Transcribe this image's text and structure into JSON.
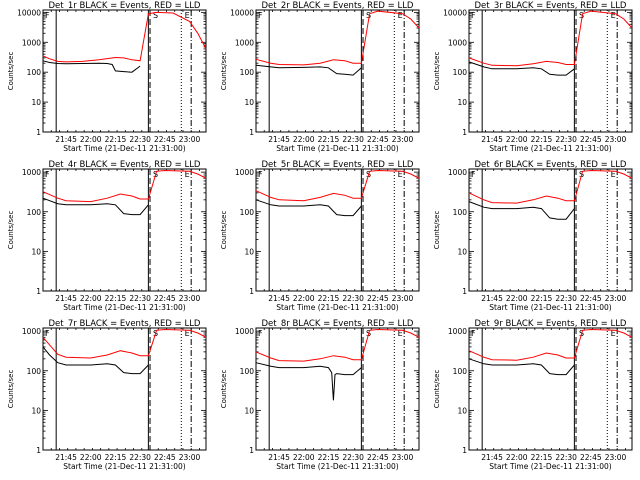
{
  "chart_data": [
    {
      "type": "line",
      "title": "Det_1r BLACK = Events, RED = LLD",
      "xlabel": "Start Time (21-Dec-11 21:31:00)",
      "ylabel": "Counts/sec",
      "y_scale": "log",
      "ylim": [
        1,
        12000
      ],
      "xlim": [
        "21:31",
        "23:10"
      ],
      "x_ticks": [
        "21:45",
        "22:00",
        "22:15",
        "22:30",
        "22:45",
        "23:00"
      ],
      "y_ticks": [
        "1",
        "10",
        "100",
        "1000",
        "10000"
      ],
      "markers": [
        "F",
        "S",
        "E"
      ],
      "series": [
        {
          "color": "#000000",
          "x": [
            "21:31",
            "21:35",
            "21:40",
            "21:45",
            "21:55",
            "22:05",
            "22:10",
            "22:13",
            "22:15",
            "22:20",
            "22:25",
            "22:30"
          ],
          "values": [
            240,
            210,
            195,
            190,
            195,
            200,
            195,
            180,
            110,
            105,
            100,
            160
          ]
        },
        {
          "color": "#ff0000",
          "x": [
            "21:31",
            "21:35",
            "21:40",
            "21:45",
            "21:55",
            "22:05",
            "22:15",
            "22:20",
            "22:25",
            "22:30",
            "22:35",
            "22:40",
            "22:50",
            "23:00",
            "23:05",
            "23:10"
          ],
          "values": [
            350,
            280,
            230,
            220,
            230,
            260,
            310,
            300,
            260,
            240,
            9000,
            10000,
            9500,
            5000,
            2000,
            600
          ]
        }
      ]
    },
    {
      "type": "line",
      "title": "Det_2r BLACK = Events, RED = LLD",
      "xlabel": "Start Time (21-Dec-11 21:31:00)",
      "ylabel": "Counts/sec",
      "y_scale": "log",
      "ylim": [
        1,
        12000
      ],
      "xlim": [
        "21:31",
        "23:10"
      ],
      "x_ticks": [
        "21:45",
        "22:00",
        "22:15",
        "22:30",
        "22:45",
        "23:00"
      ],
      "y_ticks": [
        "1",
        "10",
        "100",
        "1000",
        "10000"
      ],
      "markers": [
        "F",
        "S",
        "E"
      ],
      "series": [
        {
          "color": "#000000",
          "x": [
            "21:31",
            "21:40",
            "21:45",
            "22:00",
            "22:10",
            "22:15",
            "22:20",
            "22:25",
            "22:30",
            "22:35"
          ],
          "values": [
            170,
            150,
            140,
            145,
            150,
            140,
            90,
            85,
            80,
            140
          ]
        },
        {
          "color": "#ff0000",
          "x": [
            "21:31",
            "21:40",
            "21:45",
            "22:00",
            "22:10",
            "22:18",
            "22:25",
            "22:30",
            "22:35",
            "22:40",
            "22:45",
            "23:00",
            "23:05",
            "23:10"
          ],
          "values": [
            270,
            200,
            180,
            175,
            200,
            260,
            240,
            200,
            200,
            9000,
            11000,
            9000,
            6000,
            3000
          ]
        }
      ]
    },
    {
      "type": "line",
      "title": "Det_3r BLACK = Events, RED = LLD",
      "xlabel": "Start Time (21-Dec-11 21:31:00)",
      "ylabel": "Counts/sec",
      "y_scale": "log",
      "ylim": [
        1,
        12000
      ],
      "xlim": [
        "21:31",
        "23:10"
      ],
      "x_ticks": [
        "21:45",
        "22:00",
        "22:15",
        "22:30",
        "22:45",
        "23:00"
      ],
      "y_ticks": [
        "1",
        "10",
        "100",
        "1000",
        "10000"
      ],
      "markers": [
        "F",
        "S",
        "E"
      ],
      "series": [
        {
          "color": "#000000",
          "x": [
            "21:31",
            "21:40",
            "21:45",
            "22:00",
            "22:10",
            "22:15",
            "22:20",
            "22:25",
            "22:30",
            "22:35"
          ],
          "values": [
            220,
            150,
            130,
            130,
            140,
            130,
            85,
            80,
            80,
            130
          ]
        },
        {
          "color": "#ff0000",
          "x": [
            "21:31",
            "21:40",
            "21:45",
            "22:00",
            "22:10",
            "22:18",
            "22:25",
            "22:30",
            "22:35",
            "22:40",
            "22:45",
            "23:00",
            "23:05",
            "23:10"
          ],
          "values": [
            300,
            200,
            170,
            165,
            190,
            230,
            210,
            180,
            180,
            9000,
            11000,
            9000,
            6000,
            3000
          ]
        }
      ]
    },
    {
      "type": "line",
      "title": "Det_4r BLACK = Events, RED = LLD",
      "xlabel": "Start Time (21-Dec-11 21:31:00)",
      "ylabel": "Counts/sec",
      "y_scale": "log",
      "ylim": [
        1,
        1200
      ],
      "xlim": [
        "21:31",
        "23:10"
      ],
      "x_ticks": [
        "21:45",
        "22:00",
        "22:15",
        "22:30",
        "22:45",
        "23:00"
      ],
      "y_ticks": [
        "1",
        "10",
        "100",
        "1000"
      ],
      "markers": [
        "F",
        "S",
        "E"
      ],
      "series": [
        {
          "color": "#000000",
          "x": [
            "21:31",
            "21:40",
            "21:45",
            "22:00",
            "22:10",
            "22:15",
            "22:20",
            "22:25",
            "22:30",
            "22:35"
          ],
          "values": [
            220,
            160,
            150,
            150,
            160,
            150,
            90,
            85,
            85,
            150
          ]
        },
        {
          "color": "#ff0000",
          "x": [
            "21:31",
            "21:40",
            "21:45",
            "22:00",
            "22:10",
            "22:18",
            "22:25",
            "22:30",
            "22:35",
            "22:40",
            "22:45",
            "23:00",
            "23:05",
            "23:10"
          ],
          "values": [
            320,
            220,
            190,
            180,
            220,
            280,
            250,
            210,
            210,
            1050,
            1100,
            1050,
            900,
            700
          ]
        }
      ]
    },
    {
      "type": "line",
      "title": "Det_5r BLACK = Events, RED = LLD",
      "xlabel": "Start Time (21-Dec-11 21:31:00)",
      "ylabel": "Counts/sec",
      "y_scale": "log",
      "ylim": [
        1,
        1200
      ],
      "xlim": [
        "21:31",
        "23:10"
      ],
      "x_ticks": [
        "21:45",
        "22:00",
        "22:15",
        "22:30",
        "22:45",
        "23:00"
      ],
      "y_ticks": [
        "1",
        "10",
        "100",
        "1000"
      ],
      "markers": [
        "F",
        "S",
        "E"
      ],
      "series": [
        {
          "color": "#000000",
          "x": [
            "21:31",
            "21:40",
            "21:45",
            "22:00",
            "22:10",
            "22:15",
            "22:20",
            "22:25",
            "22:30",
            "22:35"
          ],
          "values": [
            200,
            150,
            140,
            140,
            150,
            140,
            85,
            80,
            80,
            140
          ]
        },
        {
          "color": "#ff0000",
          "x": [
            "21:31",
            "21:40",
            "21:45",
            "22:00",
            "22:10",
            "22:18",
            "22:25",
            "22:30",
            "22:35",
            "22:40",
            "22:45",
            "23:00",
            "23:05",
            "23:10"
          ],
          "values": [
            340,
            230,
            200,
            190,
            230,
            290,
            260,
            220,
            220,
            1050,
            1100,
            1050,
            900,
            700
          ]
        }
      ]
    },
    {
      "type": "line",
      "title": "Det_6r BLACK = Events, RED = LLD",
      "xlabel": "Start Time (21-Dec-11 21:31:00)",
      "ylabel": "Counts/sec",
      "y_scale": "log",
      "ylim": [
        1,
        1200
      ],
      "xlim": [
        "21:31",
        "23:10"
      ],
      "x_ticks": [
        "21:45",
        "22:00",
        "22:15",
        "22:30",
        "22:45",
        "23:00"
      ],
      "y_ticks": [
        "1",
        "10",
        "100",
        "1000"
      ],
      "markers": [
        "F",
        "S",
        "E"
      ],
      "series": [
        {
          "color": "#000000",
          "x": [
            "21:31",
            "21:40",
            "21:45",
            "22:00",
            "22:10",
            "22:15",
            "22:20",
            "22:25",
            "22:30",
            "22:35"
          ],
          "values": [
            180,
            130,
            120,
            120,
            130,
            120,
            70,
            65,
            65,
            120
          ]
        },
        {
          "color": "#ff0000",
          "x": [
            "21:31",
            "21:40",
            "21:45",
            "22:00",
            "22:10",
            "22:18",
            "22:25",
            "22:30",
            "22:35",
            "22:40",
            "22:45",
            "23:00",
            "23:05",
            "23:10"
          ],
          "values": [
            300,
            200,
            170,
            165,
            200,
            250,
            220,
            190,
            190,
            1050,
            1100,
            1050,
            900,
            700
          ]
        }
      ]
    },
    {
      "type": "line",
      "title": "Det_7r BLACK = Events, RED = LLD",
      "xlabel": "Start Time (21-Dec-11 21:31:00)",
      "ylabel": "Counts/sec",
      "y_scale": "log",
      "ylim": [
        1,
        1200
      ],
      "xlim": [
        "21:31",
        "23:10"
      ],
      "x_ticks": [
        "21:45",
        "22:00",
        "22:15",
        "22:30",
        "22:45",
        "23:00"
      ],
      "y_ticks": [
        "1",
        "10",
        "100",
        "1000"
      ],
      "markers": [
        "F",
        "S",
        "E"
      ],
      "series": [
        {
          "color": "#000000",
          "x": [
            "21:31",
            "21:35",
            "21:40",
            "21:45",
            "22:00",
            "22:10",
            "22:15",
            "22:20",
            "22:25",
            "22:30",
            "22:35"
          ],
          "values": [
            400,
            250,
            160,
            140,
            140,
            150,
            140,
            90,
            85,
            85,
            140
          ]
        },
        {
          "color": "#ff0000",
          "x": [
            "21:31",
            "21:35",
            "21:40",
            "21:45",
            "22:00",
            "22:10",
            "22:18",
            "22:25",
            "22:30",
            "22:35",
            "22:40",
            "22:45",
            "23:00",
            "23:05",
            "23:10"
          ],
          "values": [
            700,
            450,
            260,
            220,
            210,
            250,
            320,
            280,
            240,
            240,
            1050,
            1100,
            1050,
            900,
            700
          ]
        }
      ]
    },
    {
      "type": "line",
      "title": "Det_8r BLACK = Events, RED = LLD",
      "xlabel": "Start Time (21-Dec-11 21:31:00)",
      "ylabel": "Counts/sec",
      "y_scale": "log",
      "ylim": [
        1,
        1200
      ],
      "xlim": [
        "21:31",
        "23:10"
      ],
      "x_ticks": [
        "21:45",
        "22:00",
        "22:15",
        "22:30",
        "22:45",
        "23:00"
      ],
      "y_ticks": [
        "1",
        "10",
        "100",
        "1000"
      ],
      "markers": [
        "F",
        "S",
        "E"
      ],
      "series": [
        {
          "color": "#000000",
          "x": [
            "21:31",
            "21:40",
            "21:45",
            "22:00",
            "22:10",
            "22:15",
            "22:17",
            "22:18",
            "22:19",
            "22:20",
            "22:25",
            "22:30",
            "22:35"
          ],
          "values": [
            160,
            130,
            120,
            120,
            130,
            120,
            90,
            18,
            80,
            85,
            80,
            80,
            120
          ]
        },
        {
          "color": "#ff0000",
          "x": [
            "21:31",
            "21:40",
            "21:45",
            "22:00",
            "22:10",
            "22:18",
            "22:25",
            "22:30",
            "22:35",
            "22:40",
            "22:45",
            "23:00",
            "23:05",
            "23:10"
          ],
          "values": [
            300,
            210,
            180,
            175,
            200,
            240,
            220,
            190,
            190,
            1050,
            1100,
            1050,
            900,
            700
          ]
        }
      ]
    },
    {
      "type": "line",
      "title": "Det_9r BLACK = Events, RED = LLD",
      "xlabel": "Start Time (21-Dec-11 21:31:00)",
      "ylabel": "Counts/sec",
      "y_scale": "log",
      "ylim": [
        1,
        1200
      ],
      "xlim": [
        "21:31",
        "23:10"
      ],
      "x_ticks": [
        "21:45",
        "22:00",
        "22:15",
        "22:30",
        "22:45",
        "23:00"
      ],
      "y_ticks": [
        "1",
        "10",
        "100",
        "1000"
      ],
      "markers": [
        "F",
        "S",
        "E"
      ],
      "series": [
        {
          "color": "#000000",
          "x": [
            "21:31",
            "21:40",
            "21:45",
            "22:00",
            "22:10",
            "22:15",
            "22:20",
            "22:25",
            "22:30",
            "22:35"
          ],
          "values": [
            200,
            150,
            140,
            140,
            150,
            140,
            85,
            80,
            80,
            140
          ]
        },
        {
          "color": "#ff0000",
          "x": [
            "21:31",
            "21:40",
            "21:45",
            "22:00",
            "22:10",
            "22:18",
            "22:25",
            "22:30",
            "22:35",
            "22:40",
            "22:45",
            "23:00",
            "23:05",
            "23:10"
          ],
          "values": [
            320,
            220,
            190,
            185,
            220,
            280,
            250,
            210,
            210,
            1050,
            1100,
            1050,
            900,
            700
          ]
        }
      ]
    }
  ]
}
